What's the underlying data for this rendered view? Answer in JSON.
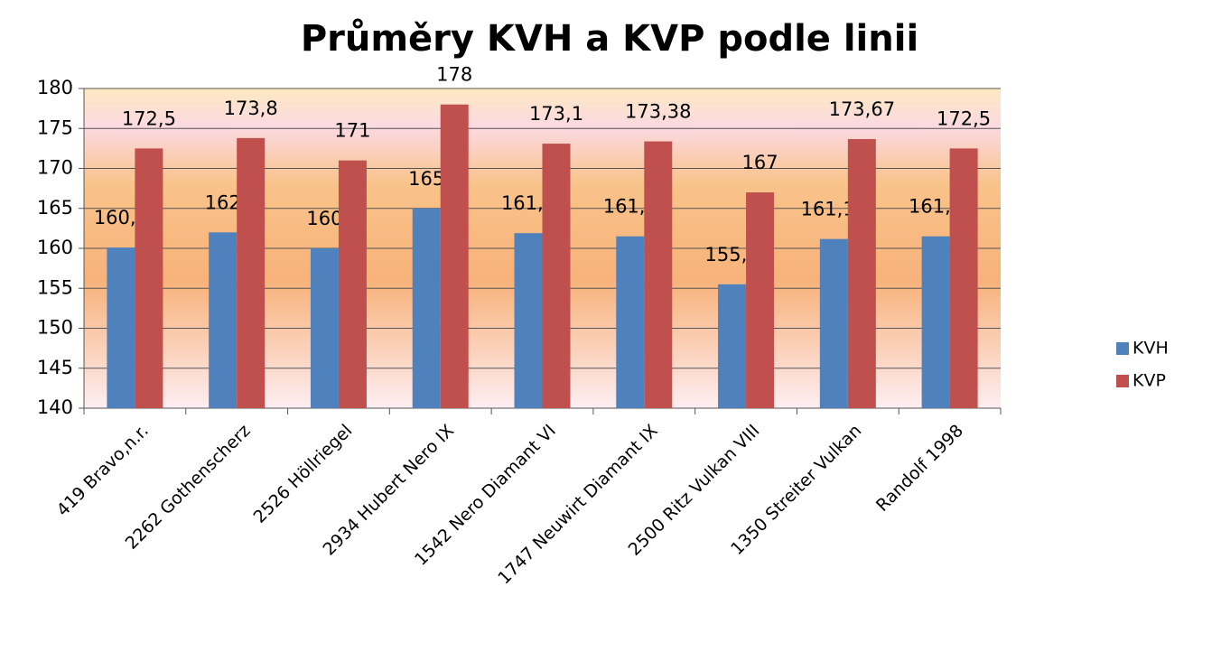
{
  "chart_data": {
    "type": "bar",
    "title": "Průměry KVH a KVP podle linii",
    "categories": [
      "419 Bravo,n.r.",
      "2262 Gothenscherz",
      "2526 Höllriegel",
      "2934 Hubert Nero IX",
      "1542 Nero Diamant VI",
      "1747 Neuwirt Diamant IX",
      "2500 Ritz Vulkan VIII",
      "1350 Streiter Vulkan",
      "Randolf 1998"
    ],
    "series": [
      {
        "name": "KVH",
        "color": "#4f81bd",
        "values": [
          160.1,
          162,
          160,
          165,
          161.9,
          161.5,
          155.5,
          161.17,
          161.5
        ],
        "value_labels": [
          "160,1",
          "162",
          "160",
          "165",
          "161,9",
          "161,5",
          "155,5",
          "161,17",
          "161,5"
        ]
      },
      {
        "name": "KVP",
        "color": "#c0504d",
        "values": [
          172.5,
          173.8,
          171,
          178,
          173.1,
          173.38,
          167,
          173.67,
          172.5
        ],
        "value_labels": [
          "172,5",
          "173,8",
          "171",
          "178",
          "173,1",
          "173,38",
          "167",
          "173,67",
          "172,5"
        ]
      }
    ],
    "ylim": [
      140,
      180
    ],
    "yticks": [
      140,
      145,
      150,
      155,
      160,
      165,
      170,
      175,
      180
    ],
    "grid": true,
    "legend": "right"
  }
}
